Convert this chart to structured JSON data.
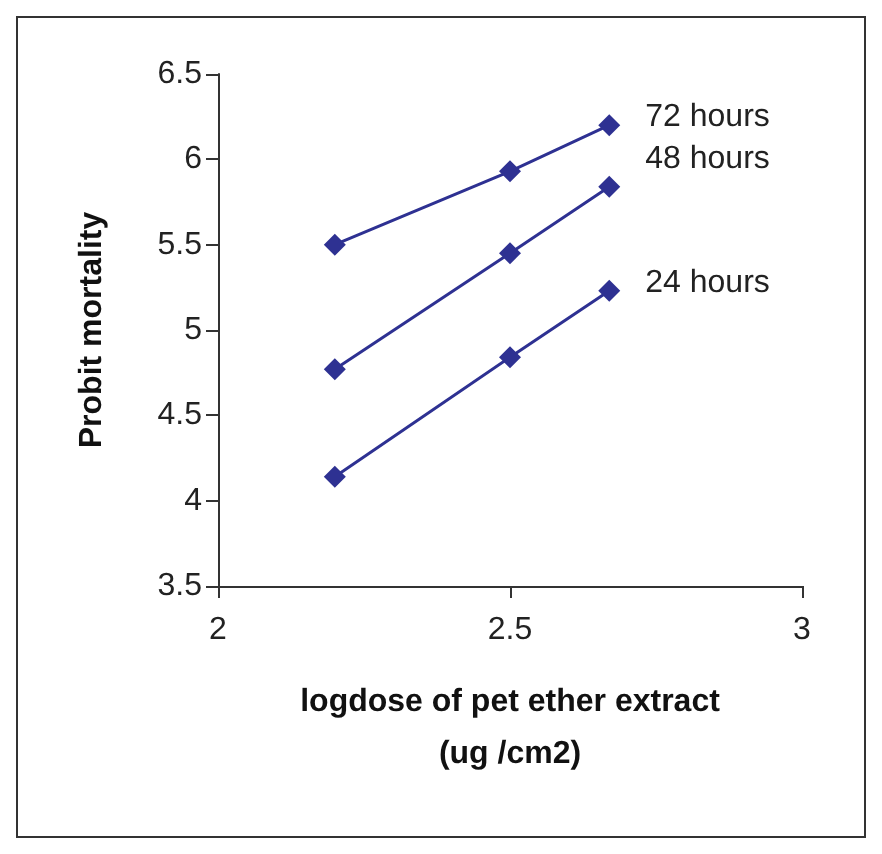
{
  "chart_data": {
    "type": "line",
    "xlabel": "logdose of pet ether extract\n(ug /cm2)",
    "ylabel": "Probit mortality",
    "x": [
      2.2,
      2.5,
      2.67
    ],
    "series": [
      {
        "name": "72 hours",
        "color": "#2e3192",
        "values": [
          5.5,
          5.93,
          6.2
        ]
      },
      {
        "name": "48 hours",
        "color": "#2e3192",
        "values": [
          4.77,
          5.45,
          5.84
        ]
      },
      {
        "name": "24 hours",
        "color": "#2e3192",
        "values": [
          4.14,
          4.84,
          5.23
        ]
      }
    ],
    "xlim": [
      2,
      3
    ],
    "xticks": [
      2,
      2.5,
      3
    ],
    "ylim": [
      3.5,
      6.5
    ],
    "yticks": [
      3.5,
      4,
      4.5,
      5,
      5.5,
      6,
      6.5
    ],
    "grid": false,
    "legend": false,
    "marker": "diamond",
    "line_style": "solid"
  }
}
